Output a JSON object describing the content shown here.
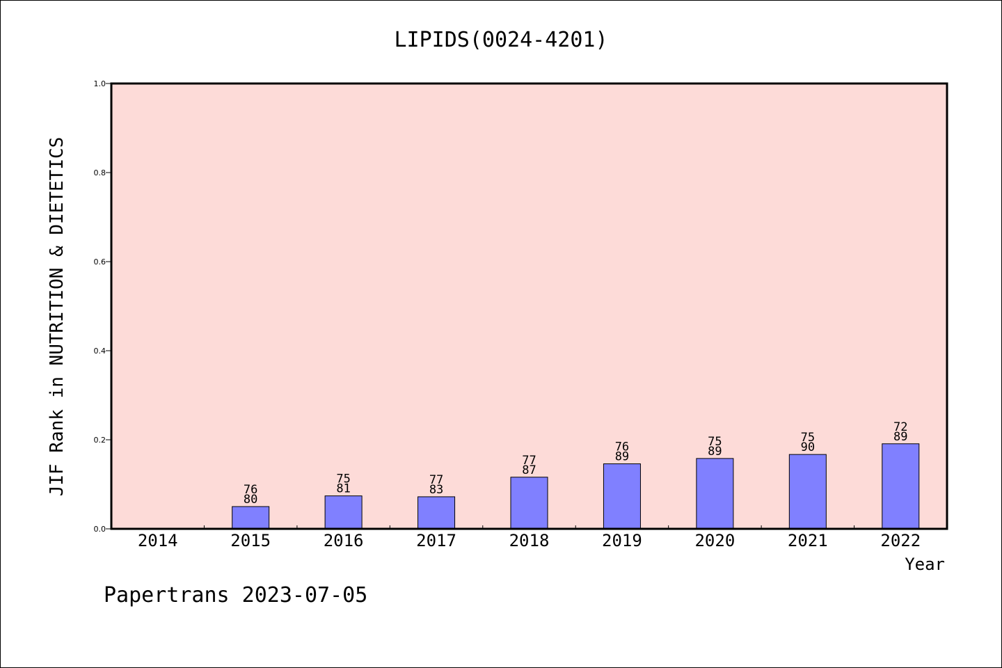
{
  "chart_data": {
    "type": "bar",
    "title": "LIPIDS(0024-4201)",
    "xlabel": "Year",
    "ylabel": "JIF Rank in NUTRITION & DIETETICS",
    "categories": [
      "2014",
      "2015",
      "2016",
      "2017",
      "2018",
      "2019",
      "2020",
      "2021",
      "2022"
    ],
    "values": [
      null,
      0.05,
      0.074,
      0.072,
      0.116,
      0.146,
      0.158,
      0.167,
      0.191
    ],
    "bar_labels": [
      null,
      {
        "rank": "76",
        "total": "80"
      },
      {
        "rank": "75",
        "total": "81"
      },
      {
        "rank": "77",
        "total": "83"
      },
      {
        "rank": "77",
        "total": "87"
      },
      {
        "rank": "76",
        "total": "89"
      },
      {
        "rank": "75",
        "total": "89"
      },
      {
        "rank": "75",
        "total": "90"
      },
      {
        "rank": "72",
        "total": "89"
      }
    ],
    "ylim": [
      0,
      1.0
    ],
    "yticks": [
      "0.0",
      "0.2",
      "0.4",
      "0.6",
      "0.8",
      "1.0"
    ],
    "grid": false,
    "legend": "none",
    "colors": {
      "plot_background": "#fddbd8",
      "bar_fill": "#8080ff",
      "bar_stroke": "#000000",
      "axis": "#000000"
    }
  },
  "footer": {
    "text": "Papertrans 2023-07-05"
  }
}
